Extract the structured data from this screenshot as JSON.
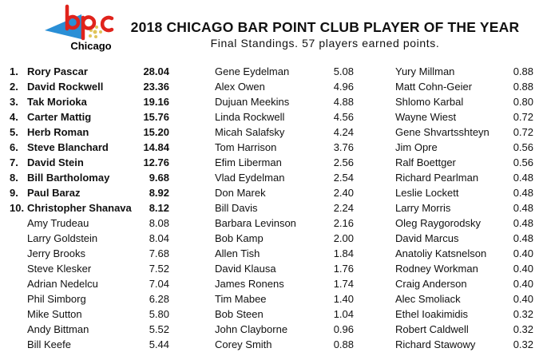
{
  "logo": {
    "letters": "bpc",
    "city": "Chicago",
    "colors": {
      "red": "#e0231c",
      "blue": "#2a8fd6",
      "gold": "#e0c45a"
    }
  },
  "title": "2018 CHICAGO BAR POINT CLUB PLAYER OF THE YEAR",
  "subtitle": "Final Standings. 57 players earned points.",
  "columns": [
    [
      {
        "rank": "1.",
        "name": "Rory Pascar",
        "points": "28.04"
      },
      {
        "rank": "2.",
        "name": "David Rockwell",
        "points": "23.36"
      },
      {
        "rank": "3.",
        "name": "Tak Morioka",
        "points": "19.16"
      },
      {
        "rank": "4.",
        "name": "Carter Mattig",
        "points": "15.76"
      },
      {
        "rank": "5.",
        "name": "Herb Roman",
        "points": "15.20"
      },
      {
        "rank": "6.",
        "name": "Steve Blanchard",
        "points": "14.84"
      },
      {
        "rank": "7.",
        "name": "David Stein",
        "points": "12.76"
      },
      {
        "rank": "8.",
        "name": "Bill Bartholomay",
        "points": "9.68"
      },
      {
        "rank": "9.",
        "name": "Paul Baraz",
        "points": "8.92"
      },
      {
        "rank": "10.",
        "name": "Christopher Shanava",
        "points": "8.12"
      },
      {
        "rank": "",
        "name": "Amy Trudeau",
        "points": "8.08"
      },
      {
        "rank": "",
        "name": "Larry Goldstein",
        "points": "8.04"
      },
      {
        "rank": "",
        "name": "Jerry Brooks",
        "points": "7.68"
      },
      {
        "rank": "",
        "name": "Steve Klesker",
        "points": "7.52"
      },
      {
        "rank": "",
        "name": "Adrian Nedelcu",
        "points": "7.04"
      },
      {
        "rank": "",
        "name": "Phil Simborg",
        "points": "6.28"
      },
      {
        "rank": "",
        "name": "Mike Sutton",
        "points": "5.80"
      },
      {
        "rank": "",
        "name": "Andy Bittman",
        "points": "5.52"
      },
      {
        "rank": "",
        "name": "Bill Keefe",
        "points": "5.44"
      }
    ],
    [
      {
        "name": "Gene Eydelman",
        "points": "5.08"
      },
      {
        "name": "Alex Owen",
        "points": "4.96"
      },
      {
        "name": "Dujuan Meekins",
        "points": "4.88"
      },
      {
        "name": "Linda Rockwell",
        "points": "4.56"
      },
      {
        "name": "Micah Salafsky",
        "points": "4.24"
      },
      {
        "name": "Tom Harrison",
        "points": "3.76"
      },
      {
        "name": "Efim Liberman",
        "points": "2.56"
      },
      {
        "name": "Vlad Eydelman",
        "points": "2.54"
      },
      {
        "name": "Don Marek",
        "points": "2.40"
      },
      {
        "name": "Bill Davis",
        "points": "2.24"
      },
      {
        "name": "Barbara Levinson",
        "points": "2.16"
      },
      {
        "name": "Bob Kamp",
        "points": "2.00"
      },
      {
        "name": "Allen Tish",
        "points": "1.84"
      },
      {
        "name": "David Klausa",
        "points": "1.76"
      },
      {
        "name": "James Ronens",
        "points": "1.74"
      },
      {
        "name": "Tim Mabee",
        "points": "1.40"
      },
      {
        "name": "Bob Steen",
        "points": "1.04"
      },
      {
        "name": "John Clayborne",
        "points": "0.96"
      },
      {
        "name": "Corey Smith",
        "points": "0.88"
      }
    ],
    [
      {
        "name": "Yury Millman",
        "points": "0.88"
      },
      {
        "name": "Matt Cohn-Geier",
        "points": "0.88"
      },
      {
        "name": "Shlomo Karbal",
        "points": "0.80"
      },
      {
        "name": "Wayne Wiest",
        "points": "0.72"
      },
      {
        "name": "Gene Shvartsshteyn",
        "points": "0.72"
      },
      {
        "name": "Jim Opre",
        "points": "0.56"
      },
      {
        "name": "Ralf Boettger",
        "points": "0.56"
      },
      {
        "name": "Richard Pearlman",
        "points": "0.48"
      },
      {
        "name": "Leslie Lockett",
        "points": "0.48"
      },
      {
        "name": "Larry Morris",
        "points": "0.48"
      },
      {
        "name": "Oleg Raygorodsky",
        "points": "0.48"
      },
      {
        "name": "David Marcus",
        "points": "0.48"
      },
      {
        "name": "Anatoliy Katsnelson",
        "points": "0.40"
      },
      {
        "name": "Rodney Workman",
        "points": "0.40"
      },
      {
        "name": "Craig Anderson",
        "points": "0.40"
      },
      {
        "name": "Alec Smoliack",
        "points": "0.40"
      },
      {
        "name": "Ethel Ioakimidis",
        "points": "0.32"
      },
      {
        "name": "Robert Caldwell",
        "points": "0.32"
      },
      {
        "name": "Richard Stawowy",
        "points": "0.32"
      }
    ]
  ]
}
